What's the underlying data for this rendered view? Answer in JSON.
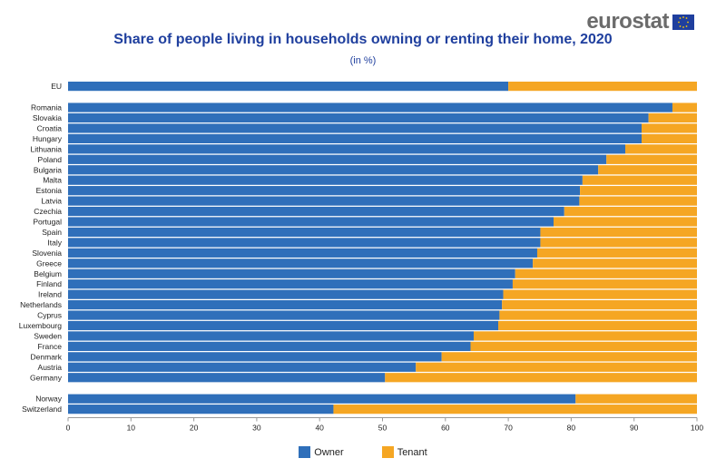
{
  "header": {
    "brand": "eurostat",
    "title": "Share of people living in households owning or renting their home, 2020",
    "subtitle": "(in %)"
  },
  "colors": {
    "owner": "#2f6fba",
    "tenant": "#f5a623",
    "title": "#1f3f9e"
  },
  "legend": {
    "owner_label": "Owner",
    "tenant_label": "Tenant"
  },
  "chart_data": {
    "type": "bar",
    "orientation": "horizontal",
    "stacked": true,
    "title": "Share of people living in households owning or renting their home, 2020",
    "subtitle": "(in %)",
    "xlim": [
      0,
      100
    ],
    "x_ticks": [
      0,
      10,
      20,
      30,
      40,
      50,
      60,
      70,
      80,
      90,
      100
    ],
    "grid": false,
    "legend_position": "bottom",
    "categories": [
      "EU",
      "Romania",
      "Slovakia",
      "Croatia",
      "Hungary",
      "Lithuania",
      "Poland",
      "Bulgaria",
      "Malta",
      "Estonia",
      "Latvia",
      "Czechia",
      "Portugal",
      "Spain",
      "Italy",
      "Slovenia",
      "Greece",
      "Belgium",
      "Finland",
      "Ireland",
      "Netherlands",
      "Cyprus",
      "Luxembourg",
      "Sweden",
      "France",
      "Denmark",
      "Austria",
      "Germany",
      "Norway",
      "Switzerland"
    ],
    "groups": [
      [
        "EU"
      ],
      [
        "Romania",
        "Slovakia",
        "Croatia",
        "Hungary",
        "Lithuania",
        "Poland",
        "Bulgaria",
        "Malta",
        "Estonia",
        "Latvia",
        "Czechia",
        "Portugal",
        "Spain",
        "Italy",
        "Slovenia",
        "Greece",
        "Belgium",
        "Finland",
        "Ireland",
        "Netherlands",
        "Cyprus",
        "Luxembourg",
        "Sweden",
        "France",
        "Denmark",
        "Austria",
        "Germany"
      ],
      [
        "Norway",
        "Switzerland"
      ]
    ],
    "series": [
      {
        "name": "Owner",
        "values": [
          70.0,
          96.1,
          92.3,
          91.2,
          91.2,
          88.6,
          85.6,
          84.3,
          81.8,
          81.4,
          81.3,
          78.9,
          77.2,
          75.1,
          75.1,
          74.6,
          73.9,
          71.1,
          70.7,
          69.2,
          69.0,
          68.6,
          68.4,
          64.5,
          64.0,
          59.4,
          55.3,
          50.4,
          80.7,
          42.2
        ]
      },
      {
        "name": "Tenant",
        "values": [
          30.0,
          3.9,
          7.7,
          8.8,
          8.8,
          11.4,
          14.4,
          15.7,
          18.2,
          18.6,
          18.7,
          21.1,
          22.8,
          24.9,
          24.9,
          25.4,
          26.1,
          28.9,
          29.3,
          30.8,
          31.0,
          31.4,
          31.6,
          35.5,
          36.0,
          40.6,
          44.7,
          49.6,
          19.3,
          57.8
        ]
      }
    ]
  }
}
